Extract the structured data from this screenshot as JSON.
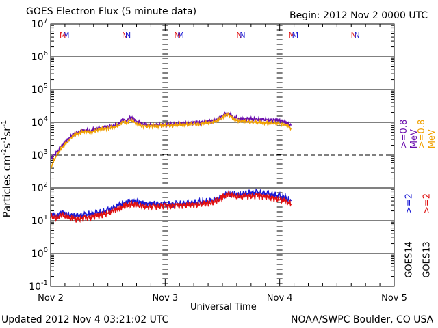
{
  "header": {
    "title": "GOES Electron Flux (5 minute data)",
    "begin": "Begin: 2012 Nov 2 0000 UTC"
  },
  "footer": {
    "updated": "Updated 2012 Nov  4 03:21:02 UTC",
    "source": "NOAA/SWPC Boulder, CO USA"
  },
  "axes": {
    "ylabel_base": "Particles cm",
    "ylabel_exp1": "-2",
    "ylabel_mid1": "s",
    "ylabel_exp2": "-1",
    "ylabel_mid2": "sr",
    "ylabel_exp3": "-1",
    "xlabel": "Universal Time"
  },
  "legend": {
    "goes13_label": "GOES13",
    "goes14_label": "GOES14",
    "g13_ge2": ">=2",
    "g14_ge2": ">=2",
    "g14_ge08": ">=0.8  MeV",
    "g13_ge08": ">=0.8  MeV"
  },
  "colors": {
    "goes14_high": "#1a1ad4",
    "goes13_high": "#e01010",
    "goes14_low": "#6a0dad",
    "goes13_low": "#f0a000",
    "threshold": "#000000"
  },
  "chart_data": {
    "type": "line",
    "title": "GOES Electron Flux (5 minute data)",
    "xlabel": "Universal Time",
    "ylabel": "Particles cm-2 s-1 sr-1",
    "yscale": "log",
    "ylim_exp": [
      -1,
      7
    ],
    "xlim_days": [
      0,
      3
    ],
    "x_ticks": [
      {
        "day": 0,
        "label": "Nov 2"
      },
      {
        "day": 1,
        "label": "Nov 3"
      },
      {
        "day": 2,
        "label": "Nov 4"
      },
      {
        "day": 3,
        "label": "Nov 5"
      }
    ],
    "y_ticks": [
      {
        "exp": 7,
        "base": "10",
        "sup": "7"
      },
      {
        "exp": 6,
        "base": "10",
        "sup": "6"
      },
      {
        "exp": 5,
        "base": "10",
        "sup": "5"
      },
      {
        "exp": 4,
        "base": "10",
        "sup": "4"
      },
      {
        "exp": 3,
        "base": "10",
        "sup": "3"
      },
      {
        "exp": 2,
        "base": "10",
        "sup": "2"
      },
      {
        "exp": 1,
        "base": "10",
        "sup": "1"
      },
      {
        "exp": 0,
        "base": "10",
        "sup": "0"
      },
      {
        "exp": -1,
        "base": "10",
        "sup": "-1"
      }
    ],
    "threshold": {
      "value": 1000,
      "style": "dashed"
    },
    "gridlines_exp": [
      6,
      5,
      4,
      2,
      1,
      0
    ],
    "markers": [
      {
        "day": 0.13,
        "text": "M",
        "colors": [
          "#e01010",
          "#1a1ad4"
        ]
      },
      {
        "day": 0.67,
        "text": "N",
        "colors": [
          "#e01010",
          "#1a1ad4"
        ]
      },
      {
        "day": 1.13,
        "text": "M",
        "colors": [
          "#e01010",
          "#1a1ad4"
        ]
      },
      {
        "day": 1.67,
        "text": "N",
        "colors": [
          "#e01010",
          "#1a1ad4"
        ]
      },
      {
        "day": 2.13,
        "text": "M",
        "colors": [
          "#e01010",
          "#1a1ad4"
        ]
      },
      {
        "day": 2.67,
        "text": "N",
        "colors": [
          "#e01010",
          "#1a1ad4"
        ]
      }
    ],
    "series": [
      {
        "name": "GOES14 >=0.8 MeV",
        "color": "#6a0dad",
        "x": [
          0,
          0.03,
          0.06,
          0.1,
          0.15,
          0.2,
          0.25,
          0.3,
          0.35,
          0.4,
          0.45,
          0.5,
          0.55,
          0.6,
          0.63,
          0.66,
          0.7,
          0.75,
          0.8,
          0.85,
          0.9,
          1.0,
          1.1,
          1.2,
          1.3,
          1.4,
          1.45,
          1.5,
          1.55,
          1.6,
          1.65,
          1.7,
          1.8,
          1.9,
          2.0,
          2.05,
          2.1
        ],
        "y": [
          800,
          1000,
          1300,
          2000,
          3000,
          4500,
          5200,
          6000,
          5500,
          6500,
          7000,
          7500,
          8000,
          9000,
          13000,
          11000,
          15000,
          11000,
          9000,
          8500,
          8200,
          8500,
          9000,
          9500,
          10000,
          11000,
          12500,
          16000,
          20000,
          14000,
          13500,
          13000,
          12500,
          12000,
          11500,
          10500,
          8000
        ]
      },
      {
        "name": "GOES13 >=0.8 MeV",
        "color": "#f0a000",
        "x": [
          0,
          0.03,
          0.06,
          0.1,
          0.15,
          0.2,
          0.25,
          0.3,
          0.35,
          0.4,
          0.45,
          0.5,
          0.55,
          0.6,
          0.63,
          0.66,
          0.7,
          0.75,
          0.8,
          0.85,
          0.9,
          1.0,
          1.1,
          1.2,
          1.3,
          1.4,
          1.45,
          1.5,
          1.55,
          1.6,
          1.65,
          1.7,
          1.8,
          1.9,
          2.0,
          2.05,
          2.1
        ],
        "y": [
          400,
          700,
          1100,
          1700,
          2600,
          4000,
          4700,
          5500,
          4800,
          5800,
          6200,
          6500,
          7000,
          8000,
          11000,
          9500,
          12000,
          9000,
          7800,
          7500,
          7600,
          7900,
          8300,
          8700,
          9000,
          10000,
          11000,
          14000,
          18000,
          12000,
          11000,
          10500,
          10000,
          9500,
          9200,
          8500,
          6500
        ]
      },
      {
        "name": "GOES14 >=2 MeV",
        "color": "#1a1ad4",
        "x": [
          0,
          0.05,
          0.1,
          0.15,
          0.2,
          0.3,
          0.4,
          0.5,
          0.55,
          0.6,
          0.65,
          0.7,
          0.75,
          0.8,
          0.9,
          1.0,
          1.1,
          1.2,
          1.3,
          1.4,
          1.45,
          1.5,
          1.55,
          1.6,
          1.65,
          1.7,
          1.8,
          1.9,
          2.0,
          2.05,
          2.1
        ],
        "y": [
          16,
          14,
          18,
          15,
          14,
          15,
          17,
          20,
          24,
          30,
          35,
          40,
          38,
          33,
          32,
          31,
          32,
          33,
          36,
          40,
          45,
          55,
          70,
          65,
          62,
          68,
          72,
          65,
          55,
          50,
          40
        ]
      },
      {
        "name": "GOES13 >=2 MeV",
        "color": "#e01010",
        "x": [
          0,
          0.05,
          0.1,
          0.15,
          0.2,
          0.3,
          0.4,
          0.5,
          0.55,
          0.6,
          0.65,
          0.7,
          0.75,
          0.8,
          0.9,
          1.0,
          1.1,
          1.2,
          1.3,
          1.4,
          1.45,
          1.5,
          1.55,
          1.6,
          1.65,
          1.7,
          1.8,
          1.9,
          2.0,
          2.05,
          2.1
        ],
        "y": [
          14,
          12,
          15,
          13,
          11,
          12,
          14,
          17,
          20,
          24,
          28,
          32,
          30,
          27,
          27,
          28,
          29,
          30,
          32,
          35,
          40,
          50,
          65,
          55,
          52,
          55,
          58,
          52,
          45,
          40,
          32
        ]
      }
    ]
  }
}
